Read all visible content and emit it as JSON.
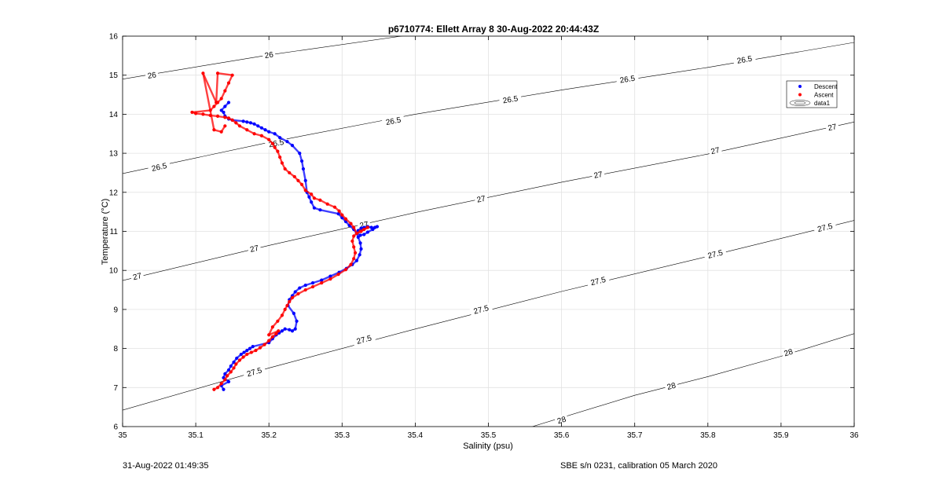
{
  "figure": {
    "footer_left": "31-Aug-2022 01:49:35",
    "footer_right": "SBE s/n 0231, calibration 05 March 2020"
  },
  "chart_data": {
    "type": "scatter",
    "title": "p6710774: Ellett Array 8 30-Aug-2022 20:44:43Z",
    "xlabel": "Salinity (psu)",
    "ylabel": "Temperature (°C)",
    "xlim": [
      35,
      36
    ],
    "ylim": [
      6,
      16
    ],
    "xticks": [
      35,
      35.1,
      35.2,
      35.3,
      35.4,
      35.5,
      35.6,
      35.7,
      35.8,
      35.9,
      36
    ],
    "yticks": [
      6,
      7,
      8,
      9,
      10,
      11,
      12,
      13,
      14,
      15,
      16
    ],
    "xtick_labels": [
      "35",
      "35.1",
      "35.2",
      "35.3",
      "35.4",
      "35.5",
      "35.6",
      "35.7",
      "35.8",
      "35.9",
      "36"
    ],
    "ytick_labels": [
      "6",
      "7",
      "8",
      "9",
      "10",
      "11",
      "12",
      "13",
      "14",
      "15",
      "16"
    ],
    "grid": true,
    "legend": {
      "position": "top-right",
      "entries": [
        {
          "label": "Descent",
          "color": "#0000ff",
          "marker": "dot"
        },
        {
          "label": "Ascent",
          "color": "#ff0000",
          "marker": "dot"
        },
        {
          "label": "data1",
          "color": "#000000",
          "marker": "contour"
        }
      ]
    },
    "contours": [
      {
        "level": 26,
        "label": "26",
        "line": [
          [
            35.0,
            14.9
          ],
          [
            35.2,
            15.52
          ],
          [
            35.4,
            16.05
          ]
        ],
        "label_positions": [
          [
            35.04,
            15.0
          ],
          [
            35.2,
            15.52
          ]
        ]
      },
      {
        "level": 26.5,
        "label": "26.5",
        "line": [
          [
            35.0,
            12.48
          ],
          [
            35.2,
            13.28
          ],
          [
            35.4,
            14.0
          ],
          [
            35.6,
            14.62
          ],
          [
            35.8,
            15.2
          ],
          [
            36.0,
            15.84
          ]
        ],
        "label_positions": [
          [
            35.05,
            12.65
          ],
          [
            35.21,
            13.26
          ],
          [
            35.37,
            13.83
          ],
          [
            35.53,
            14.38
          ],
          [
            35.69,
            14.9
          ],
          [
            35.85,
            15.4
          ]
        ]
      },
      {
        "level": 27,
        "label": "27",
        "line": [
          [
            35.0,
            9.74
          ],
          [
            35.2,
            10.64
          ],
          [
            35.4,
            11.48
          ],
          [
            35.6,
            12.26
          ],
          [
            35.8,
            12.98
          ],
          [
            36.0,
            13.8
          ]
        ],
        "label_positions": [
          [
            35.02,
            9.85
          ],
          [
            35.18,
            10.56
          ],
          [
            35.33,
            11.17
          ],
          [
            35.49,
            11.83
          ],
          [
            35.65,
            12.45
          ],
          [
            35.81,
            13.07
          ],
          [
            35.97,
            13.67
          ]
        ]
      },
      {
        "level": 27.5,
        "label": "27.5",
        "line": [
          [
            35.0,
            6.42
          ],
          [
            35.2,
            7.5
          ],
          [
            35.4,
            8.5
          ],
          [
            35.6,
            9.46
          ],
          [
            35.8,
            10.36
          ],
          [
            36.0,
            11.28
          ]
        ],
        "label_positions": [
          [
            35.18,
            7.4
          ],
          [
            35.33,
            8.23
          ],
          [
            35.49,
            9.0
          ],
          [
            35.65,
            9.73
          ],
          [
            35.81,
            10.42
          ],
          [
            35.96,
            11.1
          ]
        ]
      },
      {
        "level": 28,
        "label": "28",
        "line": [
          [
            35.56,
            6.0
          ],
          [
            35.7,
            6.8
          ],
          [
            35.8,
            7.28
          ],
          [
            35.9,
            7.8
          ],
          [
            36.0,
            8.38
          ]
        ],
        "label_positions": [
          [
            35.6,
            6.17
          ],
          [
            35.75,
            7.04
          ],
          [
            35.91,
            7.9
          ]
        ]
      }
    ],
    "series": [
      {
        "name": "Descent",
        "color": "#0000ff",
        "x": [
          35.138,
          35.135,
          35.145,
          35.138,
          35.14,
          35.145,
          35.148,
          35.152,
          35.156,
          35.162,
          35.166,
          35.17,
          35.174,
          35.178,
          35.2,
          35.205,
          35.21,
          35.214,
          35.218,
          35.222,
          35.228,
          35.232,
          35.236,
          35.238,
          35.234,
          35.226,
          35.228,
          35.232,
          35.236,
          35.242,
          35.25,
          35.26,
          35.272,
          35.284,
          35.296,
          35.306,
          35.314,
          35.32,
          35.324,
          35.326,
          35.325,
          35.322,
          35.32,
          35.322,
          35.326,
          35.33,
          35.335,
          35.34,
          35.345,
          35.348,
          35.342,
          35.335,
          35.33,
          35.325,
          35.32,
          35.316,
          35.31,
          35.305,
          35.3,
          35.295,
          35.27,
          35.262,
          35.258,
          35.255,
          35.252,
          35.25,
          35.247,
          35.245,
          35.242,
          35.232,
          35.225,
          35.215,
          35.208,
          35.2,
          35.195,
          35.19,
          35.185,
          35.18,
          35.175,
          35.17,
          35.165,
          35.15,
          35.145,
          35.14,
          35.138,
          35.135,
          35.14,
          35.145
        ],
        "y": [
          6.95,
          7.05,
          7.15,
          7.25,
          7.35,
          7.45,
          7.55,
          7.65,
          7.75,
          7.85,
          7.9,
          7.95,
          8.0,
          8.05,
          8.15,
          8.25,
          8.35,
          8.4,
          8.45,
          8.5,
          8.48,
          8.45,
          8.5,
          8.7,
          8.9,
          9.1,
          9.25,
          9.35,
          9.45,
          9.55,
          9.62,
          9.68,
          9.75,
          9.85,
          9.95,
          10.05,
          10.15,
          10.25,
          10.4,
          10.55,
          10.7,
          10.85,
          10.95,
          11.02,
          11.08,
          11.1,
          11.12,
          11.1,
          11.1,
          11.12,
          11.05,
          10.98,
          10.92,
          10.9,
          10.95,
          11.05,
          11.15,
          11.25,
          11.35,
          11.45,
          11.55,
          11.6,
          11.75,
          11.88,
          12.0,
          12.3,
          12.6,
          12.8,
          13.0,
          13.2,
          13.3,
          13.4,
          13.5,
          13.55,
          13.6,
          13.65,
          13.7,
          13.75,
          13.78,
          13.8,
          13.82,
          13.85,
          13.88,
          13.95,
          14.05,
          14.1,
          14.2,
          14.3
        ],
        "style": "points"
      },
      {
        "name": "Ascent",
        "color": "#ff0000",
        "x": [
          35.125,
          35.13,
          35.135,
          35.14,
          35.143,
          35.148,
          35.152,
          35.155,
          35.16,
          35.165,
          35.17,
          35.176,
          35.182,
          35.188,
          35.194,
          35.2,
          35.205,
          35.21,
          35.213,
          35.2,
          35.205,
          35.212,
          35.218,
          35.222,
          35.225,
          35.228,
          35.232,
          35.24,
          35.25,
          35.26,
          35.272,
          35.284,
          35.295,
          35.305,
          35.312,
          35.316,
          35.318,
          35.316,
          35.314,
          35.316,
          35.32,
          35.325,
          35.33,
          35.335,
          35.326,
          35.32,
          35.316,
          35.312,
          35.305,
          35.3,
          35.296,
          35.29,
          35.28,
          35.27,
          35.262,
          35.258,
          35.25,
          35.245,
          35.24,
          35.235,
          35.228,
          35.222,
          35.218,
          35.215,
          35.212,
          35.208,
          35.205,
          35.2,
          35.19,
          35.18,
          35.17,
          35.16,
          35.155,
          35.15,
          35.145,
          35.14,
          35.13,
          35.12,
          35.11,
          35.1,
          35.095,
          35.12,
          35.125,
          35.13,
          35.135,
          35.14,
          35.145,
          35.15,
          35.13,
          35.128,
          35.11,
          35.125,
          35.135,
          35.14
        ],
        "y": [
          6.95,
          7.0,
          7.1,
          7.2,
          7.3,
          7.4,
          7.5,
          7.6,
          7.7,
          7.78,
          7.85,
          7.9,
          7.95,
          8.02,
          8.1,
          8.2,
          8.3,
          8.38,
          8.45,
          8.35,
          8.55,
          8.7,
          8.85,
          9.0,
          9.1,
          9.2,
          9.3,
          9.4,
          9.5,
          9.58,
          9.68,
          9.78,
          9.9,
          10.02,
          10.15,
          10.3,
          10.45,
          10.6,
          10.75,
          10.88,
          10.95,
          11.0,
          11.05,
          11.1,
          11.0,
          10.95,
          11.1,
          11.2,
          11.32,
          11.42,
          11.52,
          11.62,
          11.7,
          11.8,
          11.85,
          11.95,
          12.05,
          12.2,
          12.3,
          12.4,
          12.5,
          12.6,
          12.75,
          12.9,
          13.05,
          13.15,
          13.25,
          13.35,
          13.45,
          13.5,
          13.6,
          13.7,
          13.78,
          13.85,
          13.9,
          13.92,
          13.95,
          13.97,
          14.0,
          14.02,
          14.05,
          14.1,
          14.2,
          14.3,
          14.4,
          14.6,
          14.8,
          15.0,
          15.05,
          14.3,
          15.05,
          13.6,
          13.55,
          13.7
        ],
        "style": "points"
      }
    ]
  }
}
